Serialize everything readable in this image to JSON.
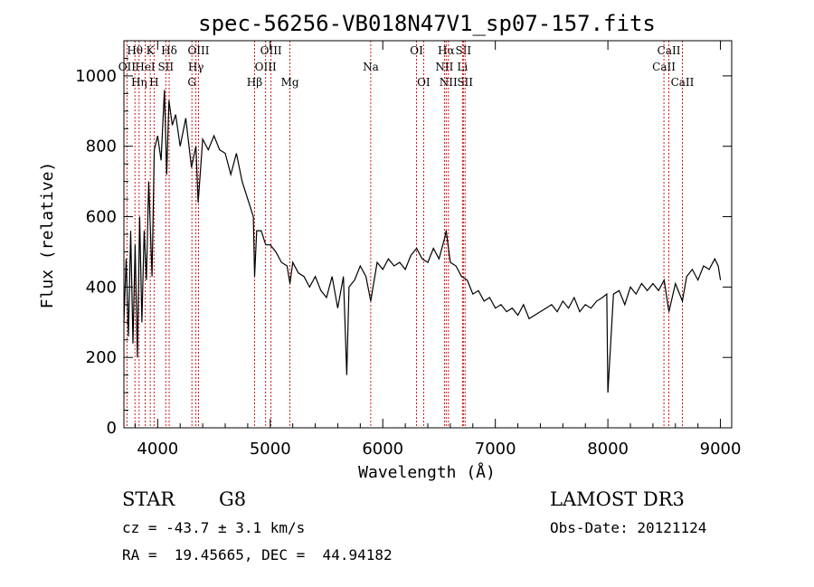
{
  "title": "spec-56256-VB018N47V1_sp07-157.fits",
  "info": {
    "class": "STAR",
    "subclass": "G8",
    "survey": "LAMOST DR3",
    "cz": "cz = -43.7 ± 3.1 km/s",
    "obs_date": "Obs-Date: 20121124",
    "radec": "RA =  19.45665, DEC =  44.94182"
  },
  "chart_data": {
    "type": "line",
    "title": "spec-56256-VB018N47V1_sp07-157.fits",
    "xlabel": "Wavelength (Å)",
    "ylabel": "Flux (relative)",
    "xlim": [
      3700,
      9100
    ],
    "ylim": [
      0,
      1100
    ],
    "xticks": [
      4000,
      5000,
      6000,
      7000,
      8000,
      9000
    ],
    "yticks": [
      0,
      200,
      400,
      600,
      800,
      1000
    ],
    "line_color": "#000000",
    "marker_color": "#cc0000",
    "series": [
      {
        "x": [
          3700,
          3720,
          3740,
          3760,
          3780,
          3800,
          3820,
          3840,
          3860,
          3880,
          3900,
          3920,
          3950,
          3970,
          4000,
          4030,
          4060,
          4080,
          4100,
          4130,
          4160,
          4200,
          4250,
          4300,
          4340,
          4360,
          4400,
          4450,
          4500,
          4550,
          4600,
          4650,
          4700,
          4750,
          4800,
          4850,
          4861,
          4880,
          4920,
          4960,
          5000,
          5050,
          5100,
          5150,
          5175,
          5200,
          5250,
          5300,
          5350,
          5400,
          5450,
          5500,
          5550,
          5600,
          5650,
          5680,
          5700,
          5750,
          5800,
          5850,
          5893,
          5950,
          6000,
          6050,
          6100,
          6150,
          6200,
          6250,
          6300,
          6350,
          6400,
          6450,
          6500,
          6550,
          6563,
          6600,
          6650,
          6700,
          6750,
          6800,
          6850,
          6900,
          6950,
          7000,
          7050,
          7100,
          7150,
          7200,
          7250,
          7300,
          7350,
          7400,
          7450,
          7500,
          7550,
          7600,
          7650,
          7700,
          7750,
          7800,
          7850,
          7900,
          7950,
          7990,
          8000,
          8050,
          8100,
          8150,
          8200,
          8250,
          8300,
          8350,
          8400,
          8450,
          8500,
          8542,
          8600,
          8662,
          8700,
          8750,
          8800,
          8850,
          8900,
          8950,
          8980,
          9000
        ],
        "y": [
          300,
          480,
          260,
          560,
          240,
          520,
          200,
          600,
          300,
          560,
          420,
          700,
          430,
          790,
          830,
          760,
          960,
          720,
          930,
          860,
          890,
          800,
          880,
          740,
          800,
          640,
          820,
          790,
          830,
          790,
          780,
          720,
          780,
          700,
          650,
          600,
          430,
          560,
          560,
          520,
          520,
          500,
          470,
          460,
          410,
          470,
          440,
          430,
          400,
          430,
          390,
          370,
          430,
          340,
          430,
          150,
          400,
          420,
          460,
          430,
          360,
          470,
          450,
          480,
          460,
          470,
          450,
          490,
          510,
          480,
          470,
          510,
          480,
          540,
          560,
          470,
          460,
          430,
          420,
          380,
          390,
          360,
          370,
          340,
          350,
          330,
          340,
          320,
          350,
          310,
          320,
          330,
          340,
          350,
          330,
          360,
          340,
          370,
          330,
          350,
          340,
          360,
          370,
          380,
          100,
          380,
          390,
          350,
          400,
          380,
          410,
          390,
          410,
          390,
          420,
          330,
          410,
          360,
          430,
          450,
          420,
          460,
          450,
          480,
          460,
          420
        ]
      }
    ],
    "line_markers": [
      {
        "name": "OII",
        "wl": 3727,
        "row": 1
      },
      {
        "name": "Hθ",
        "wl": 3798,
        "row": 0
      },
      {
        "name": "Hη",
        "wl": 3835,
        "row": 2
      },
      {
        "name": "K",
        "wl": 3934,
        "row": 0
      },
      {
        "name": "HeI",
        "wl": 3889,
        "row": 1
      },
      {
        "name": "SII",
        "wl": 4072,
        "row": 1
      },
      {
        "name": "H",
        "wl": 3968,
        "row": 2
      },
      {
        "name": "Hδ",
        "wl": 4102,
        "row": 0
      },
      {
        "name": "OIII",
        "wl": 4363,
        "row": 0
      },
      {
        "name": "Hγ",
        "wl": 4340,
        "row": 1
      },
      {
        "name": "G",
        "wl": 4304,
        "row": 2
      },
      {
        "name": "Hβ",
        "wl": 4861,
        "row": 2
      },
      {
        "name": "OIII",
        "wl": 5007,
        "row": 0
      },
      {
        "name": "OIII",
        "wl": 4959,
        "row": 1
      },
      {
        "name": "Mg",
        "wl": 5175,
        "row": 2
      },
      {
        "name": "Na",
        "wl": 5893,
        "row": 1
      },
      {
        "name": "OI",
        "wl": 6300,
        "row": 0
      },
      {
        "name": "OI",
        "wl": 6363,
        "row": 2
      },
      {
        "name": "Hα",
        "wl": 6563,
        "row": 0
      },
      {
        "name": "NII",
        "wl": 6548,
        "row": 1
      },
      {
        "name": "NII",
        "wl": 6583,
        "row": 2
      },
      {
        "name": "SII",
        "wl": 6716,
        "row": 0
      },
      {
        "name": "Li",
        "wl": 6708,
        "row": 1
      },
      {
        "name": "SII",
        "wl": 6731,
        "row": 2
      },
      {
        "name": "CaII",
        "wl": 8542,
        "row": 0
      },
      {
        "name": "CaII",
        "wl": 8498,
        "row": 1
      },
      {
        "name": "CaII",
        "wl": 8662,
        "row": 2
      }
    ]
  }
}
